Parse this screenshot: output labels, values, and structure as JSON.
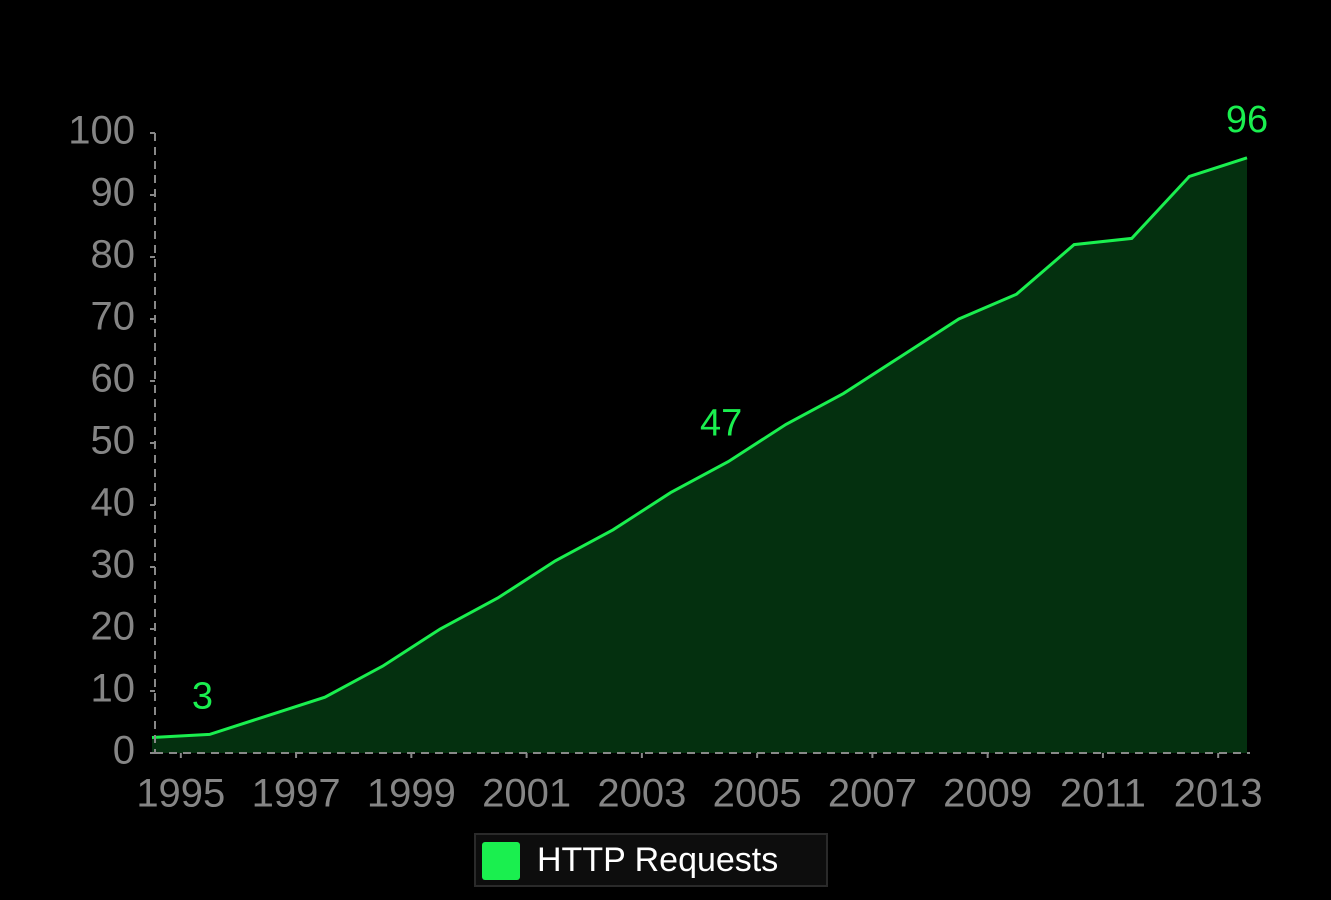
{
  "chart_data": {
    "type": "area",
    "x": [
      1994.5,
      1995.5,
      1996.5,
      1997.5,
      1998.5,
      1999.5,
      2000.5,
      2001.5,
      2002.5,
      2003.5,
      2004.5,
      2005.5,
      2006.5,
      2007.5,
      2008.5,
      2009.5,
      2010.5,
      2011.5,
      2012.5,
      2013.5
    ],
    "series": [
      {
        "name": "HTTP Requests",
        "color": "#1aef4f",
        "fill": "#04300f",
        "values": [
          2.5,
          3,
          6,
          9,
          14,
          20,
          25,
          31,
          36,
          42,
          47,
          53,
          58,
          64,
          70,
          74,
          82,
          83,
          93,
          96
        ],
        "value_labels": [
          null,
          "3",
          null,
          null,
          null,
          null,
          null,
          null,
          null,
          null,
          "47",
          null,
          null,
          null,
          null,
          null,
          null,
          null,
          null,
          "96"
        ]
      }
    ],
    "xlim": [
      1994.5,
      2013.5
    ],
    "xticks": [
      1995,
      1997,
      1999,
      2001,
      2003,
      2005,
      2007,
      2009,
      2011,
      2013
    ],
    "ylim": [
      0,
      100
    ],
    "yticks": [
      0,
      10,
      20,
      30,
      40,
      50,
      60,
      70,
      80,
      90,
      100
    ],
    "legend": "bottom"
  }
}
